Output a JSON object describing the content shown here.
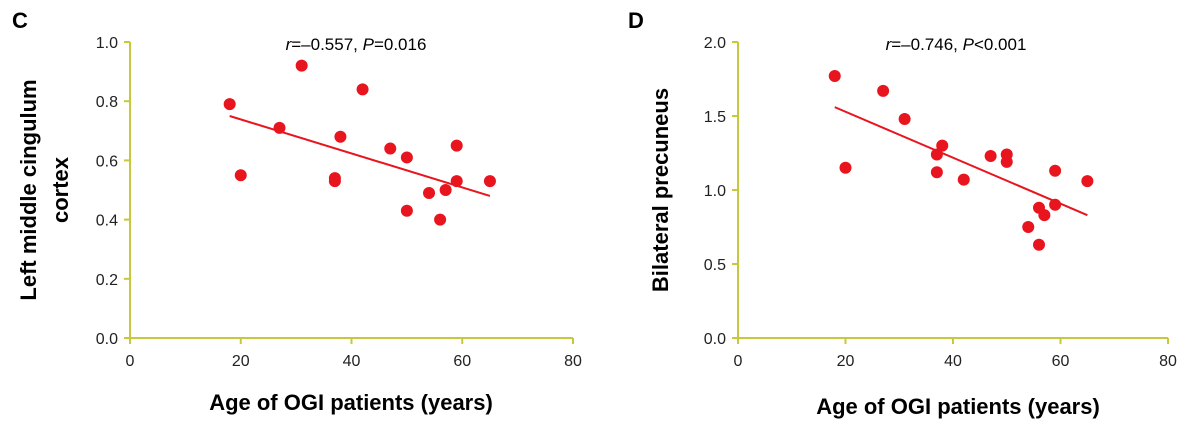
{
  "chart_data": [
    {
      "type": "scatter",
      "panel_label": "C",
      "xlabel": "Age of OGI patients (years)",
      "ylabel_lines": [
        "Left middle cingulum",
        "cortex"
      ],
      "xlim": [
        0,
        80
      ],
      "ylim": [
        0.0,
        1.0
      ],
      "x_ticks": [
        "0",
        "20",
        "40",
        "60",
        "80"
      ],
      "y_ticks": [
        "0.0",
        "0.2",
        "0.4",
        "0.6",
        "0.8",
        "1.0"
      ],
      "x_tick_values": [
        0,
        20,
        40,
        60,
        80
      ],
      "y_tick_values": [
        0.0,
        0.2,
        0.4,
        0.6,
        0.8,
        1.0
      ],
      "stat": {
        "r_symbol": "r",
        "r_value": "=–0.557, ",
        "p_symbol": "P",
        "p_value": "=0.016"
      },
      "fit_line": {
        "x": [
          18,
          65
        ],
        "y": [
          0.75,
          0.48
        ]
      },
      "colors": {
        "axis": "#c8c83c",
        "points": "#e8141e",
        "fit": "#e8141e"
      },
      "points": [
        {
          "x": 18,
          "y": 0.79
        },
        {
          "x": 20,
          "y": 0.55
        },
        {
          "x": 27,
          "y": 0.71
        },
        {
          "x": 31,
          "y": 0.92
        },
        {
          "x": 37,
          "y": 0.54
        },
        {
          "x": 37,
          "y": 0.53
        },
        {
          "x": 38,
          "y": 0.68
        },
        {
          "x": 42,
          "y": 0.84
        },
        {
          "x": 47,
          "y": 0.64
        },
        {
          "x": 50,
          "y": 0.61
        },
        {
          "x": 50,
          "y": 0.43
        },
        {
          "x": 54,
          "y": 0.49
        },
        {
          "x": 56,
          "y": 0.4
        },
        {
          "x": 57,
          "y": 0.5
        },
        {
          "x": 59,
          "y": 0.65
        },
        {
          "x": 59,
          "y": 0.53
        },
        {
          "x": 65,
          "y": 0.53
        }
      ]
    },
    {
      "type": "scatter",
      "panel_label": "D",
      "xlabel": "Age of OGI patients (years)",
      "ylabel_lines": [
        "Bilateral precuneus"
      ],
      "xlim": [
        0,
        80
      ],
      "ylim": [
        0.0,
        2.0
      ],
      "x_ticks": [
        "0",
        "20",
        "40",
        "60",
        "80"
      ],
      "y_ticks": [
        "0.0",
        "0.5",
        "1.0",
        "1.5",
        "2.0"
      ],
      "x_tick_values": [
        0,
        20,
        40,
        60,
        80
      ],
      "y_tick_values": [
        0.0,
        0.5,
        1.0,
        1.5,
        2.0
      ],
      "stat": {
        "r_symbol": "r",
        "r_value": "=–0.746, ",
        "p_symbol": "P",
        "p_value": "<0.001"
      },
      "fit_line": {
        "x": [
          18,
          65
        ],
        "y": [
          1.56,
          0.83
        ]
      },
      "colors": {
        "axis": "#c8c83c",
        "points": "#e8141e",
        "fit": "#e8141e"
      },
      "points": [
        {
          "x": 18,
          "y": 1.77
        },
        {
          "x": 20,
          "y": 1.15
        },
        {
          "x": 27,
          "y": 1.67
        },
        {
          "x": 31,
          "y": 1.48
        },
        {
          "x": 37,
          "y": 1.24
        },
        {
          "x": 37,
          "y": 1.12
        },
        {
          "x": 38,
          "y": 1.3
        },
        {
          "x": 42,
          "y": 1.07
        },
        {
          "x": 47,
          "y": 1.23
        },
        {
          "x": 50,
          "y": 1.24
        },
        {
          "x": 50,
          "y": 1.19
        },
        {
          "x": 54,
          "y": 0.75
        },
        {
          "x": 56,
          "y": 0.88
        },
        {
          "x": 56,
          "y": 0.63
        },
        {
          "x": 57,
          "y": 0.83
        },
        {
          "x": 59,
          "y": 1.13
        },
        {
          "x": 59,
          "y": 0.9
        },
        {
          "x": 65,
          "y": 1.06
        }
      ]
    }
  ]
}
